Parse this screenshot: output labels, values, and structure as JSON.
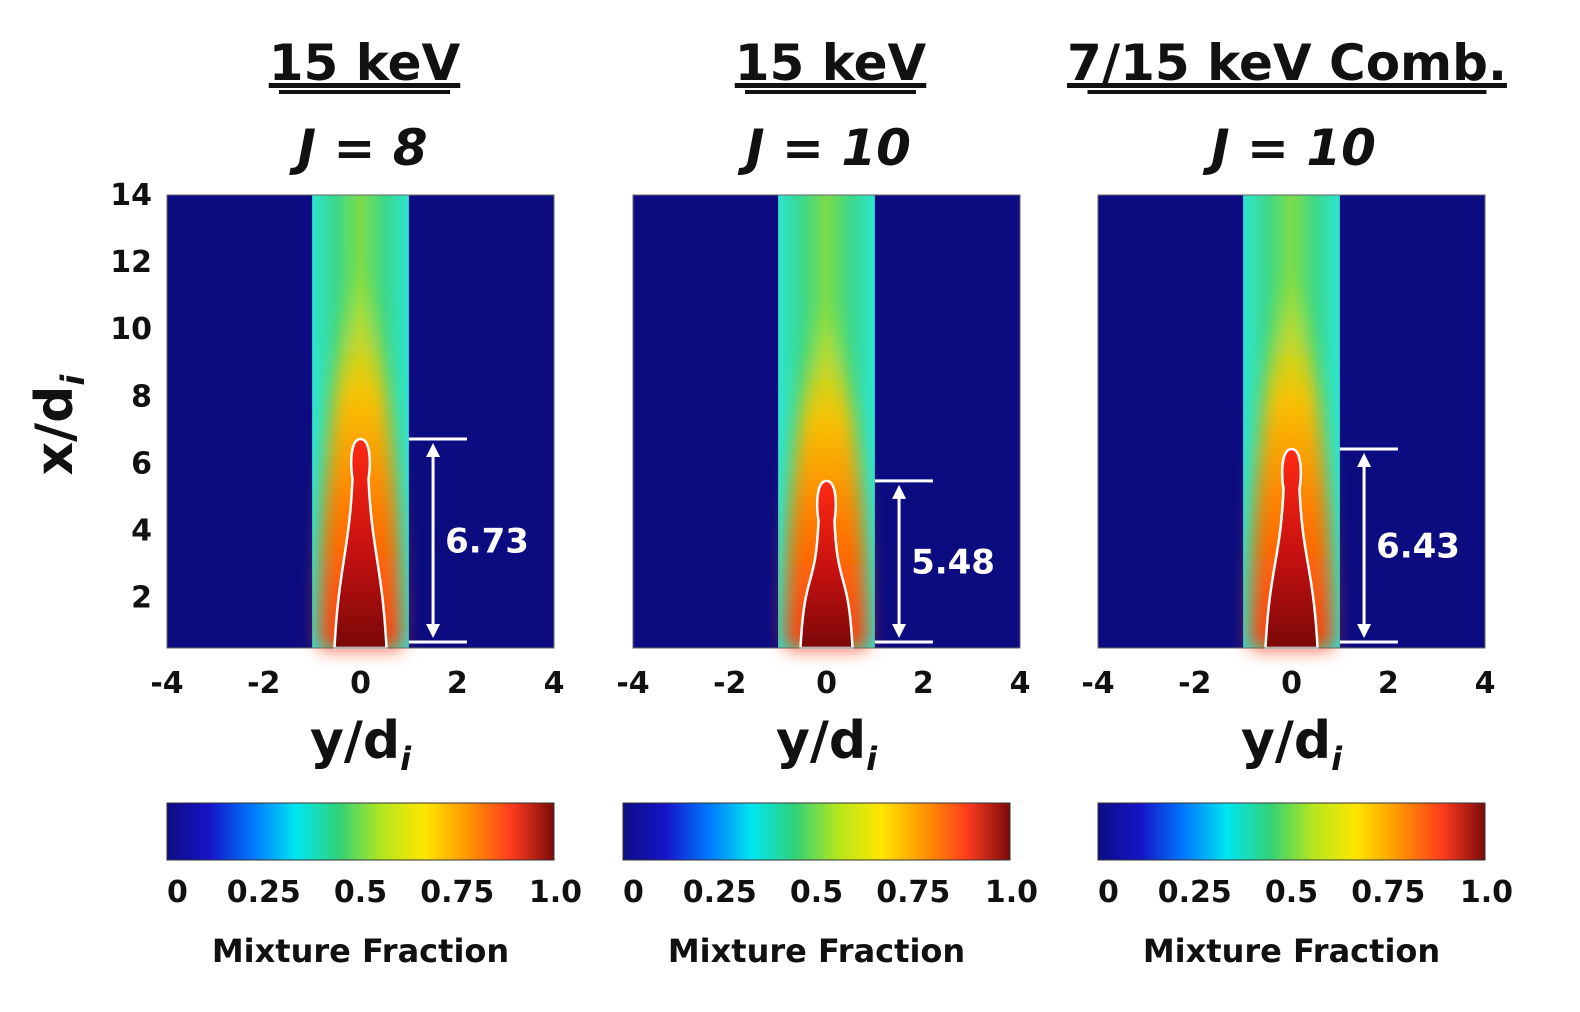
{
  "chart_data": {
    "type": "heatmap",
    "ylabel": "x/d",
    "ylabel_sub": "i",
    "xlabel": "y/d",
    "xlabel_sub": "i",
    "xlim": [
      -4,
      4
    ],
    "ylim": [
      0.5,
      14
    ],
    "xticks": [
      "-4",
      "-2",
      "0",
      "2",
      "4"
    ],
    "xtick_values": [
      -4,
      -2,
      0,
      2,
      4
    ],
    "yticks": [
      "2",
      "4",
      "6",
      "8",
      "10",
      "12",
      "14"
    ],
    "ytick_values": [
      2,
      4,
      6,
      8,
      10,
      12,
      14
    ],
    "colorbar": {
      "label": "Mixture Fraction",
      "ticks": [
        "0",
        "0.25",
        "0.5",
        "0.75",
        "1.0"
      ],
      "tick_values": [
        0,
        0.25,
        0.5,
        0.75,
        1.0
      ],
      "colormap": [
        "#0d0d84",
        "#1515c8",
        "#0078ff",
        "#00e6f0",
        "#32d278",
        "#b4e61e",
        "#ffe600",
        "#ff9600",
        "#ff3c1e",
        "#7a0a0a"
      ]
    },
    "panels": [
      {
        "title": "15 keV",
        "subtitle": "J = 8",
        "core_length": 6.73,
        "core_length_label": "6.73",
        "jet_halfwidth": 1.0,
        "annotation_label_x": 6.73
      },
      {
        "title": "15 keV",
        "subtitle": "J = 10",
        "core_length": 5.48,
        "core_length_label": "5.48",
        "jet_halfwidth": 1.0,
        "annotation_label_x": 5.48
      },
      {
        "title": "7/15 keV Comb.",
        "subtitle": "J = 10",
        "core_length": 6.43,
        "core_length_label": "6.43",
        "jet_halfwidth": 1.0,
        "annotation_label_x": 6.43
      }
    ]
  }
}
